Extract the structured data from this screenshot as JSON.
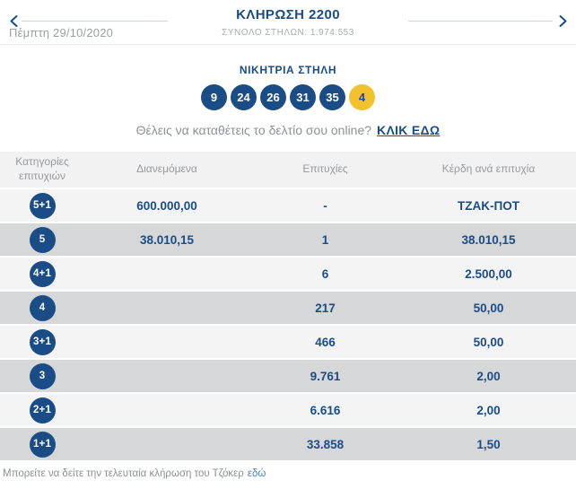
{
  "header": {
    "title": "ΚΛΗΡΩΣΗ 2200",
    "subtitle": "ΣΥΝΟΛΟ ΣΤΗΛΩΝ: 1.974.553",
    "date": "Πέμπτη 29/10/2020"
  },
  "winning": {
    "title": "ΝΙΚΗΤΡΙΑ ΣΤΗΛΗ",
    "numbers": [
      "9",
      "24",
      "26",
      "31",
      "35"
    ],
    "joker": "4",
    "promo_text": "Θέλεις να καταθέτεις το δελτίο σου online?",
    "promo_link": "ΚΛΙΚ ΕΔΩ"
  },
  "table": {
    "headers": [
      "Κατηγορίες επιτυχιών",
      "Διανεμόμενα",
      "Επιτυχίες",
      "Κέρδη ανά επιτυχία"
    ],
    "rows": [
      {
        "category": "5+1",
        "distributed": "600.000,00",
        "winners": "-",
        "prize": "ΤΖΑΚ-ΠΟΤ"
      },
      {
        "category": "5",
        "distributed": "38.010,15",
        "winners": "1",
        "prize": "38.010,15"
      },
      {
        "category": "4+1",
        "distributed": "",
        "winners": "6",
        "prize": "2.500,00"
      },
      {
        "category": "4",
        "distributed": "",
        "winners": "217",
        "prize": "50,00"
      },
      {
        "category": "3+1",
        "distributed": "",
        "winners": "466",
        "prize": "50,00"
      },
      {
        "category": "3",
        "distributed": "",
        "winners": "9.761",
        "prize": "2,00"
      },
      {
        "category": "2+1",
        "distributed": "",
        "winners": "6.616",
        "prize": "2,00"
      },
      {
        "category": "1+1",
        "distributed": "",
        "winners": "33.858",
        "prize": "1,50"
      }
    ]
  },
  "footer": {
    "text": "Μπορείτε να δείτε την τελευταία κλήρωση του Τζόκερ",
    "link": "εδώ"
  },
  "colors": {
    "primary_blue": "#1a4c86",
    "joker_yellow": "#f2c12e",
    "row_dark": "#d6d7d8",
    "row_light": "#f4f4f5",
    "link_blue": "#4a7ebb"
  }
}
